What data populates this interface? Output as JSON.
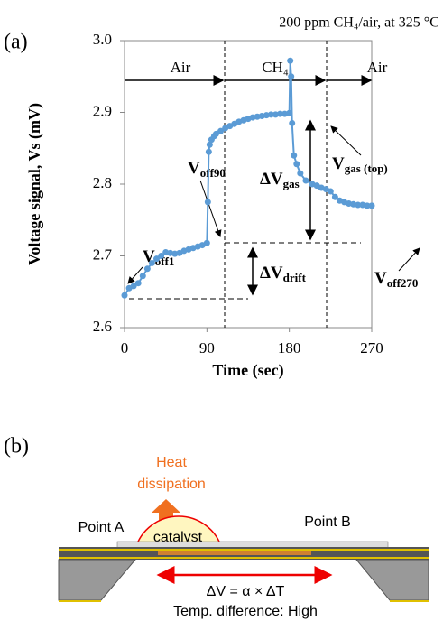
{
  "panel_a_label": "(a)",
  "panel_b_label": "(b)",
  "chart_data": {
    "type": "line",
    "title": "200 ppm CH₄/air, at 325 °C",
    "x_label": "Time (sec)",
    "y_label": "Voltage signal, Vs (mV)",
    "xlim": [
      0,
      270
    ],
    "xticks": [
      0,
      90,
      180,
      270
    ],
    "ylim": [
      2.6,
      3.0
    ],
    "yticks": [
      2.6,
      2.7,
      2.8,
      2.9,
      {
        "value": 3.0,
        "label": "3.0"
      }
    ],
    "color": "#5b9bd5",
    "x": [
      0,
      5,
      10,
      15,
      20,
      25,
      30,
      35,
      40,
      45,
      50,
      55,
      60,
      65,
      70,
      75,
      80,
      85,
      90,
      91,
      92,
      93,
      95,
      98,
      100,
      105,
      110,
      115,
      120,
      125,
      130,
      135,
      140,
      145,
      150,
      155,
      160,
      165,
      170,
      175,
      180,
      181,
      182,
      183,
      185,
      188,
      192,
      198,
      205,
      210,
      215,
      220,
      225,
      230,
      235,
      240,
      245,
      250,
      255,
      260,
      265,
      270
    ],
    "values": [
      2.645,
      2.655,
      2.658,
      2.662,
      2.672,
      2.682,
      2.69,
      2.696,
      2.7,
      2.705,
      2.704,
      2.703,
      2.704,
      2.707,
      2.709,
      2.711,
      2.713,
      2.715,
      2.718,
      2.775,
      2.845,
      2.855,
      2.862,
      2.867,
      2.87,
      2.874,
      2.878,
      2.881,
      2.884,
      2.887,
      2.889,
      2.891,
      2.893,
      2.894,
      2.895,
      2.896,
      2.897,
      2.897,
      2.898,
      2.898,
      2.899,
      2.972,
      2.95,
      2.885,
      2.84,
      2.828,
      2.815,
      2.805,
      2.8,
      2.798,
      2.795,
      2.793,
      2.79,
      2.782,
      2.777,
      2.775,
      2.773,
      2.772,
      2.771,
      2.771,
      2.77,
      2.77
    ],
    "annotations": [
      {
        "text": "Air"
      },
      {
        "text": "CH₄"
      },
      {
        "text": "Air"
      },
      {
        "text": "V",
        "sub": "off1"
      },
      {
        "text": "V",
        "sub": "off90"
      },
      {
        "text": "ΔV",
        "sub": "gas"
      },
      {
        "text": "ΔV",
        "sub": "drift"
      },
      {
        "text": "V",
        "sub": "gas (top)"
      },
      {
        "text": "V",
        "sub": "off270"
      }
    ]
  },
  "diagram": {
    "heat": "Heat",
    "dissipation": "dissipation",
    "point_a": "Point A",
    "catalyst": "catalyst",
    "point_b": "Point B",
    "equation": "ΔV = α × ΔT",
    "temp": "Temp. difference: High"
  }
}
